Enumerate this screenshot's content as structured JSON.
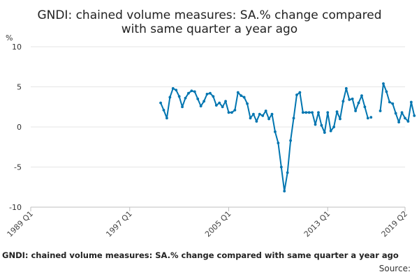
{
  "chart_data": {
    "type": "line",
    "title_lines": [
      "GNDI: chained volume measures: SA.% change compared",
      "with same quarter a year ago"
    ],
    "unit_label": "%",
    "ylim": [
      -10,
      10
    ],
    "yticks": [
      10,
      5,
      0,
      -5,
      -10
    ],
    "x_range": [
      "1989 Q1",
      "2019 Q2"
    ],
    "xtick_labels": [
      "1989 Q1",
      "1997 Q1",
      "2005 Q1",
      "2013 Q1",
      "2019 Q2"
    ],
    "series": [
      {
        "name": "GNDI: chained volume measures: SA.% change compared with same quarter a year ago",
        "color": "#0075b0",
        "segments": [
          {
            "start": "1999 Q3",
            "values": [
              3.0,
              2.1,
              1.1,
              3.7,
              4.8,
              4.6,
              3.8,
              2.5,
              3.6,
              4.2,
              4.5,
              4.4,
              3.5,
              2.6,
              3.2,
              4.1,
              4.2,
              3.8,
              2.7,
              3.0,
              2.5,
              3.2,
              1.8,
              1.8,
              2.1,
              4.3,
              3.9,
              3.7,
              2.9,
              1.1,
              1.6,
              0.7,
              1.6,
              1.4,
              2.0,
              1.0,
              1.6,
              -0.6,
              -2.0,
              -5.0,
              -8.0,
              -5.7,
              -1.7,
              1.1,
              4.0,
              4.3,
              1.8,
              1.8,
              1.8,
              1.8,
              0.3,
              1.8,
              0.2,
              -0.7,
              1.8,
              -0.5,
              0.0,
              1.9,
              1.0,
              3.2,
              4.8,
              3.4,
              3.5,
              2.0,
              3.0,
              3.9,
              2.5,
              1.1
            ]
          },
          {
            "start": "2016 Q3",
            "values": [
              1.2
            ]
          },
          {
            "start": "2017 Q2",
            "values": [
              2.0,
              5.4,
              4.4,
              3.1,
              2.9,
              1.7,
              0.6,
              1.8,
              1.1,
              0.7,
              3.1,
              1.4
            ]
          }
        ]
      }
    ]
  },
  "footer": {
    "title": "GNDI: chained volume measures: SA.% change compared with same quarter a year ago",
    "source": "Source:"
  }
}
